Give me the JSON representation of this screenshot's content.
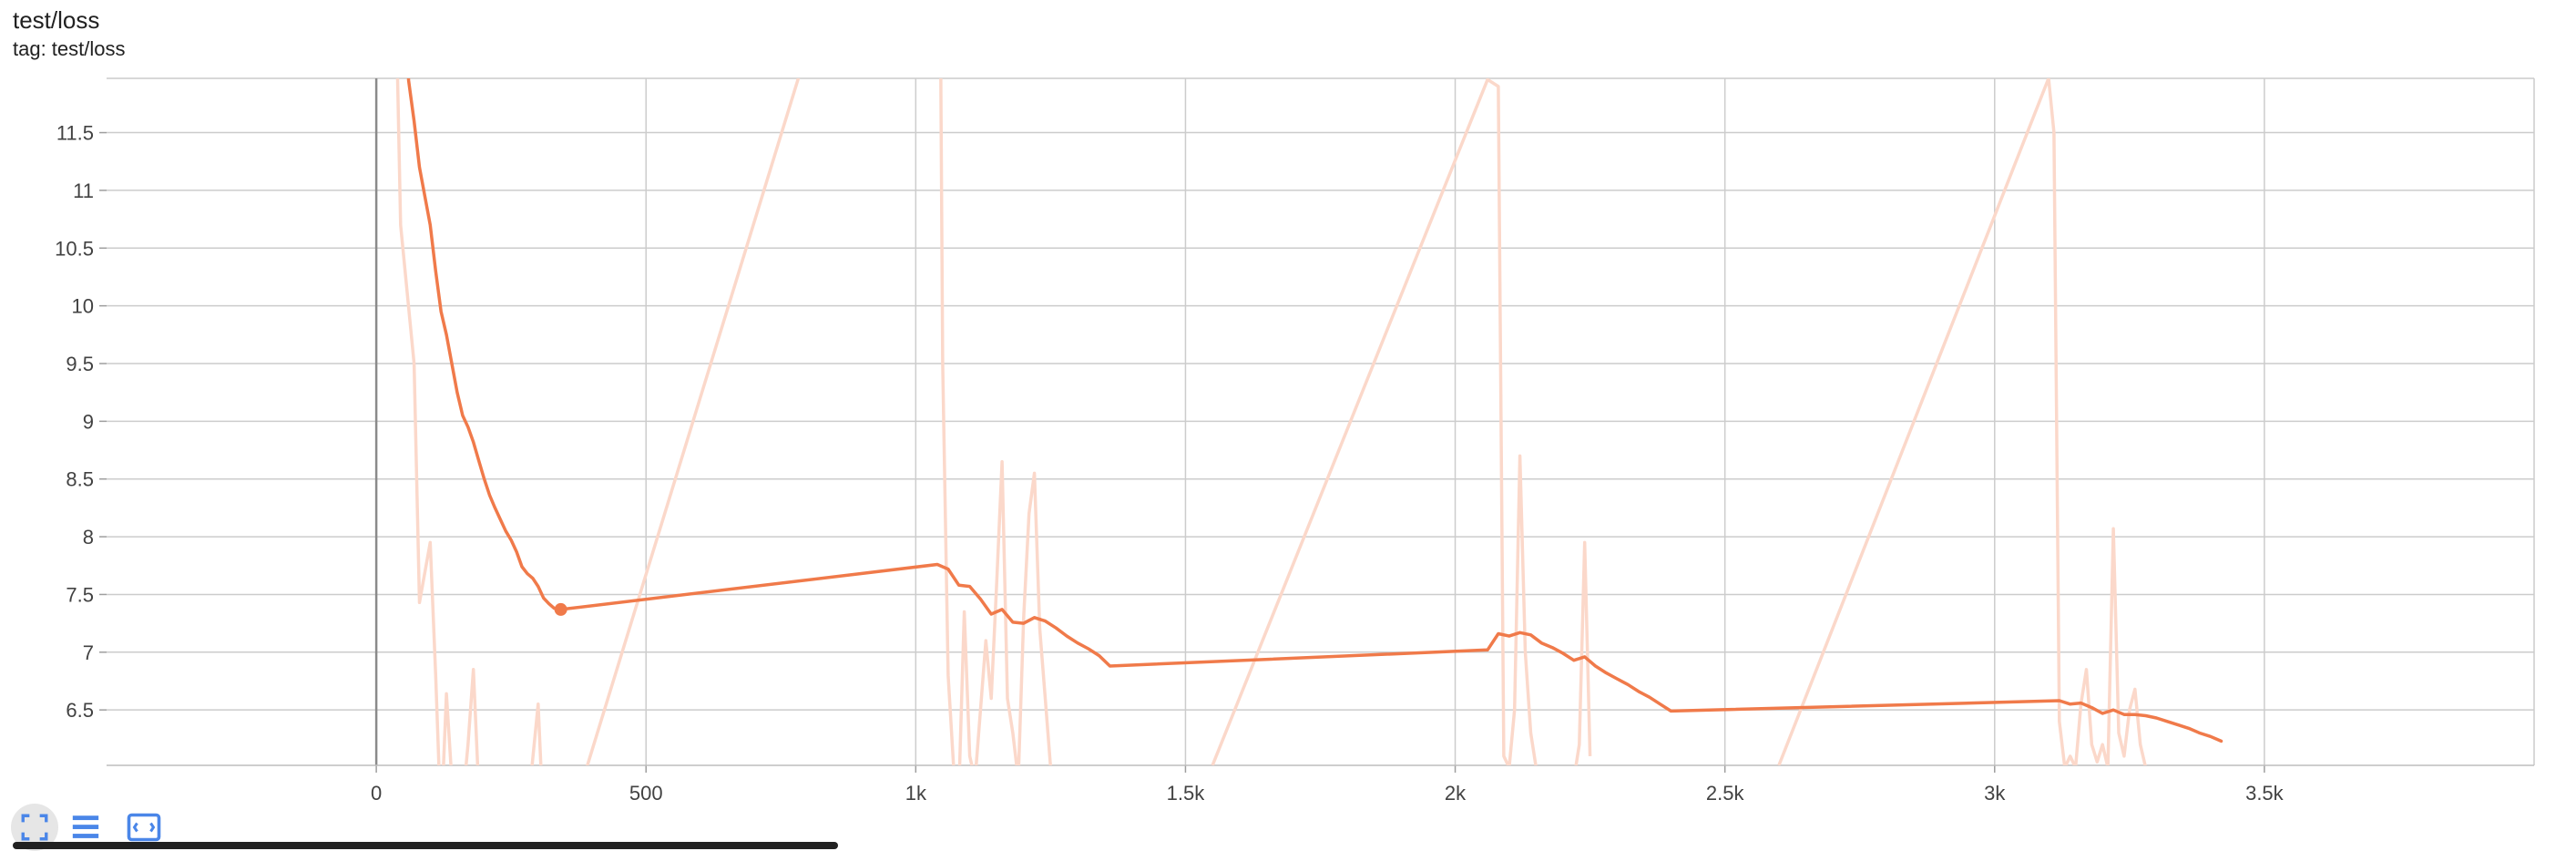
{
  "card": {
    "title": "test/loss",
    "subtitle": "tag: test/loss"
  },
  "toolbar": {
    "buttons": [
      {
        "name": "fit-domain-icon",
        "active": true
      },
      {
        "name": "list-icon",
        "active": false
      },
      {
        "name": "expand-icon",
        "active": false
      }
    ]
  },
  "colors": {
    "smoothed": "#f07a4a",
    "raw": "#fbd8ca",
    "grid": "#cccccc",
    "zero_axis": "#8a8a8a",
    "accent": "#4a86e8"
  },
  "chart_data": {
    "type": "line",
    "xlim": [
      -500,
      4000
    ],
    "ylim": [
      6.02,
      11.97
    ],
    "xticks": [
      0,
      500,
      1000,
      1500,
      2000,
      2500,
      3000,
      3500
    ],
    "xtick_labels": [
      "0",
      "500",
      "1k",
      "1.5k",
      "2k",
      "2.5k",
      "3k",
      "3.5k"
    ],
    "yticks": [
      6.5,
      7,
      7.5,
      8,
      8.5,
      9,
      9.5,
      10,
      10.5,
      11,
      11.5
    ],
    "ytick_labels": [
      "6.5",
      "7",
      "7.5",
      "8",
      "8.5",
      "9",
      "9.5",
      "10",
      "10.5",
      "11",
      "11.5"
    ],
    "grid": true,
    "series": [
      {
        "role": "smoothed",
        "x": [
          57,
          60,
          70,
          80,
          90,
          100,
          110,
          120,
          130,
          140,
          150,
          160,
          170,
          180,
          190,
          200,
          210,
          220,
          230,
          240,
          250,
          260,
          270,
          280,
          290,
          300,
          310,
          320,
          330,
          342,
          1040,
          1060,
          1080,
          1100,
          1120,
          1140,
          1160,
          1180,
          1200,
          1220,
          1240,
          1260,
          1280,
          1300,
          1320,
          1340,
          1360,
          2060,
          2080,
          2100,
          2120,
          2140,
          2160,
          2180,
          2200,
          2220,
          2240,
          2260,
          2280,
          2300,
          2320,
          2340,
          2360,
          2380,
          2400,
          3120,
          3140,
          3160,
          3180,
          3200,
          3220,
          3240,
          3260,
          3280,
          3300,
          3320,
          3340,
          3360,
          3380,
          3400,
          3420
        ],
        "y": [
          12.2,
          11.95,
          11.6,
          11.2,
          10.95,
          10.7,
          10.3,
          9.95,
          9.75,
          9.5,
          9.25,
          9.05,
          8.95,
          8.82,
          8.66,
          8.5,
          8.36,
          8.25,
          8.15,
          8.05,
          7.97,
          7.87,
          7.74,
          7.68,
          7.64,
          7.57,
          7.47,
          7.42,
          7.38,
          7.37,
          7.76,
          7.72,
          7.58,
          7.57,
          7.46,
          7.33,
          7.37,
          7.26,
          7.25,
          7.3,
          7.27,
          7.21,
          7.14,
          7.08,
          7.03,
          6.97,
          6.88,
          7.02,
          7.16,
          7.14,
          7.17,
          7.15,
          7.08,
          7.04,
          6.99,
          6.93,
          6.96,
          6.88,
          6.82,
          6.77,
          6.72,
          6.66,
          6.61,
          6.55,
          6.49,
          6.58,
          6.55,
          6.56,
          6.52,
          6.47,
          6.5,
          6.46,
          6.46,
          6.45,
          6.43,
          6.4,
          6.37,
          6.34,
          6.3,
          6.27,
          6.23
        ]
      },
      {
        "role": "raw",
        "segments": [
          {
            "x": [
              35,
              45,
              70,
              80,
              100,
              110,
              120,
              130,
              140,
              150,
              160,
              170,
              180,
              190,
              200
            ],
            "y": [
              13.0,
              10.7,
              9.5,
              7.43,
              7.95,
              6.8,
              5.5,
              6.64,
              5.9,
              5.6,
              5.7,
              6.2,
              6.85,
              5.8,
              5.5
            ]
          },
          {
            "x": [
              280,
              300,
              310
            ],
            "y": [
              5.6,
              6.55,
              5.5
            ]
          },
          {
            "x": [
              390,
              850
            ],
            "y": [
              6.0,
              13.0
            ]
          },
          {
            "x": [
              1045,
              1050,
              1060,
              1070,
              1080,
              1090,
              1100,
              1110,
              1120,
              1130,
              1140,
              1150,
              1160,
              1170,
              1180,
              1190,
              1200,
              1210,
              1220,
              1230,
              1240,
              1250
            ],
            "y": [
              13.0,
              9.5,
              6.8,
              6.02,
              5.8,
              7.35,
              6.1,
              5.9,
              6.5,
              7.1,
              6.6,
              7.6,
              8.65,
              6.6,
              6.3,
              5.9,
              7.3,
              8.2,
              8.55,
              7.2,
              6.6,
              6.0
            ]
          },
          {
            "x": [
              1550,
              2060,
              2080,
              2090,
              2100,
              2110,
              2120,
              2130,
              2140,
              2150
            ],
            "y": [
              6.02,
              11.96,
              11.9,
              6.1,
              6.0,
              6.5,
              8.7,
              7.0,
              6.3,
              6.0
            ]
          },
          {
            "x": [
              2220,
              2230,
              2240,
              2250
            ],
            "y": [
              5.9,
              6.2,
              7.95,
              6.1
            ]
          },
          {
            "x": [
              2600,
              3100,
              3110,
              3120,
              3130,
              3140,
              3150,
              3160,
              3170,
              3180,
              3190,
              3200,
              3210,
              3220,
              3230,
              3240,
              3250,
              3260,
              3270,
              3280
            ],
            "y": [
              6.02,
              11.97,
              11.5,
              6.4,
              6.0,
              6.1,
              6.0,
              6.55,
              6.85,
              6.2,
              6.05,
              6.2,
              6.0,
              8.07,
              6.3,
              6.1,
              6.5,
              6.68,
              6.2,
              6.0
            ]
          }
        ]
      }
    ],
    "marker": {
      "x": 342,
      "y": 7.37
    }
  }
}
